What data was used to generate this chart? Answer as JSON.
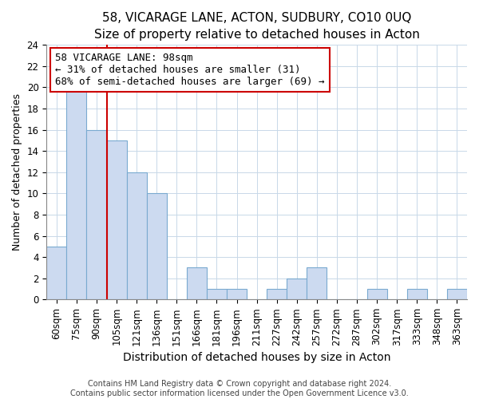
{
  "title": "58, VICARAGE LANE, ACTON, SUDBURY, CO10 0UQ",
  "subtitle": "Size of property relative to detached houses in Acton",
  "xlabel": "Distribution of detached houses by size in Acton",
  "ylabel": "Number of detached properties",
  "bar_labels": [
    "60sqm",
    "75sqm",
    "90sqm",
    "105sqm",
    "121sqm",
    "136sqm",
    "151sqm",
    "166sqm",
    "181sqm",
    "196sqm",
    "211sqm",
    "227sqm",
    "242sqm",
    "257sqm",
    "272sqm",
    "287sqm",
    "302sqm",
    "317sqm",
    "333sqm",
    "348sqm",
    "363sqm"
  ],
  "bar_values": [
    5,
    20,
    16,
    15,
    12,
    10,
    0,
    3,
    1,
    1,
    0,
    1,
    2,
    3,
    0,
    0,
    1,
    0,
    1,
    0,
    1
  ],
  "bar_color": "#ccdaf0",
  "bar_edge_color": "#7aaad0",
  "vline_color": "#cc0000",
  "annotation_line1": "58 VICARAGE LANE: 98sqm",
  "annotation_line2": "← 31% of detached houses are smaller (31)",
  "annotation_line3": "68% of semi-detached houses are larger (69) →",
  "annotation_box_color": "#ffffff",
  "annotation_box_edge": "#cc0000",
  "ylim": [
    0,
    24
  ],
  "yticks": [
    0,
    2,
    4,
    6,
    8,
    10,
    12,
    14,
    16,
    18,
    20,
    22,
    24
  ],
  "footer1": "Contains HM Land Registry data © Crown copyright and database right 2024.",
  "footer2": "Contains public sector information licensed under the Open Government Licence v3.0.",
  "title_fontsize": 11,
  "subtitle_fontsize": 10,
  "xlabel_fontsize": 10,
  "ylabel_fontsize": 9,
  "tick_fontsize": 8.5,
  "annotation_fontsize": 9,
  "footer_fontsize": 7
}
